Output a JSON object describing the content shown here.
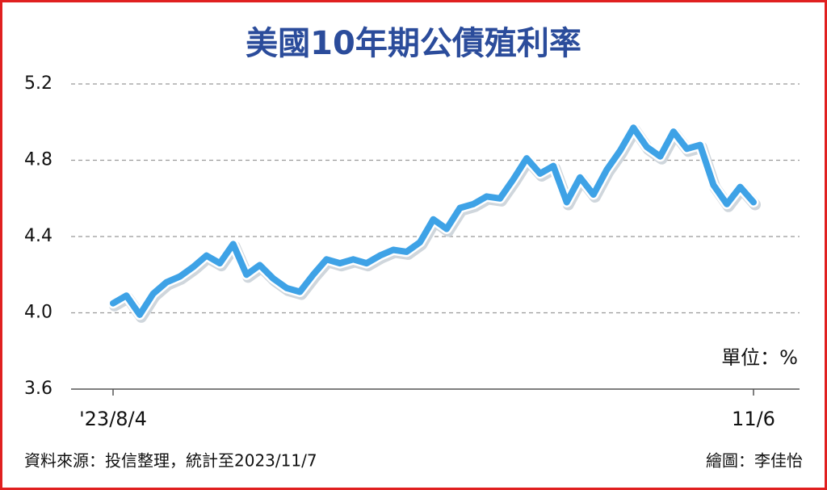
{
  "chart_data": {
    "type": "line",
    "title": "美國10年期公債殖利率",
    "unit_note": "單位：%",
    "source": "資料來源：投信整理，統計至2023/11/7",
    "credit": "繪圖：李佳怡",
    "categories": [
      "'23/8/4",
      null,
      null,
      null,
      null,
      null,
      null,
      null,
      null,
      null,
      null,
      null,
      null,
      null,
      null,
      null,
      null,
      null,
      null,
      null,
      null,
      null,
      null,
      null,
      null,
      null,
      null,
      null,
      null,
      null,
      null,
      null,
      null,
      null,
      null,
      null,
      null,
      null,
      null,
      null,
      null,
      null,
      null,
      null,
      null,
      null,
      null,
      null,
      "11/6"
    ],
    "values": [
      4.05,
      4.09,
      3.99,
      4.1,
      4.16,
      4.19,
      4.24,
      4.3,
      4.26,
      4.36,
      4.2,
      4.25,
      4.18,
      4.13,
      4.11,
      4.2,
      4.28,
      4.26,
      4.28,
      4.26,
      4.3,
      4.33,
      4.32,
      4.37,
      4.49,
      4.44,
      4.55,
      4.57,
      4.61,
      4.6,
      4.7,
      4.81,
      4.73,
      4.77,
      4.58,
      4.71,
      4.62,
      4.75,
      4.85,
      4.97,
      4.87,
      4.82,
      4.95,
      4.86,
      4.88,
      4.67,
      4.57,
      4.66,
      4.58
    ],
    "color": "#3ea2e6",
    "ylim": [
      3.6,
      5.2
    ],
    "yticks": [
      5.2,
      4.8,
      4.4,
      {
        "value": 4,
        "label": "4.0"
      },
      3.6
    ],
    "grid": true
  }
}
